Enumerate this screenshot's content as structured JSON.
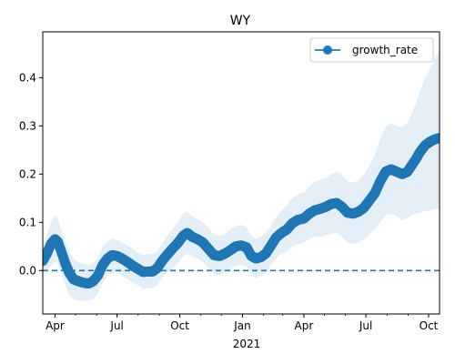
{
  "chart_data": {
    "type": "line",
    "title": "WY",
    "xlabel": "",
    "ylabel": "",
    "x_range": [
      "2020-03-14",
      "2021-10-17"
    ],
    "ylim": [
      -0.09,
      0.495
    ],
    "y_ticks": [
      0.0,
      0.1,
      0.2,
      0.3,
      0.4
    ],
    "y_tick_labels": [
      "0.0",
      "0.1",
      "0.2",
      "0.3",
      "0.4"
    ],
    "x_ticks": [
      {
        "date": "2020-04-01",
        "label": "Apr"
      },
      {
        "date": "2020-07-01",
        "label": "Jul"
      },
      {
        "date": "2020-10-01",
        "label": "Oct"
      },
      {
        "date": "2021-01-01",
        "label": "Jan"
      },
      {
        "date": "2021-04-01",
        "label": "Apr"
      },
      {
        "date": "2021-07-01",
        "label": "Jul"
      },
      {
        "date": "2021-10-01",
        "label": "Oct"
      }
    ],
    "x_year_label": "2021",
    "reference_line": {
      "y": 0.0,
      "style": "dashed"
    },
    "legend": {
      "entries": [
        "growth_rate"
      ],
      "position": "top-right"
    },
    "grid": false,
    "colors": {
      "line": "#1f77b4",
      "band": "#dbe8f4"
    },
    "series": [
      {
        "name": "growth_rate",
        "points": [
          [
            "2020-03-14",
            0.02,
            -0.005,
            0.045
          ],
          [
            "2020-03-20",
            0.035,
            0.0,
            0.075
          ],
          [
            "2020-03-26",
            0.055,
            0.01,
            0.1
          ],
          [
            "2020-04-01",
            0.065,
            0.02,
            0.115
          ],
          [
            "2020-04-05",
            0.06,
            0.015,
            0.108
          ],
          [
            "2020-04-10",
            0.04,
            -0.005,
            0.085
          ],
          [
            "2020-04-16",
            0.015,
            -0.03,
            0.06
          ],
          [
            "2020-04-22",
            -0.005,
            -0.05,
            0.04
          ],
          [
            "2020-04-28",
            -0.018,
            -0.06,
            0.025
          ],
          [
            "2020-05-05",
            -0.022,
            -0.062,
            0.018
          ],
          [
            "2020-05-12",
            -0.025,
            -0.063,
            0.015
          ],
          [
            "2020-05-20",
            -0.027,
            -0.062,
            0.012
          ],
          [
            "2020-05-27",
            -0.022,
            -0.06,
            0.016
          ],
          [
            "2020-06-03",
            -0.01,
            -0.048,
            0.028
          ],
          [
            "2020-06-10",
            0.012,
            -0.025,
            0.05
          ],
          [
            "2020-06-17",
            0.025,
            -0.01,
            0.06
          ],
          [
            "2020-06-24",
            0.032,
            -0.005,
            0.066
          ],
          [
            "2020-07-01",
            0.03,
            -0.004,
            0.064
          ],
          [
            "2020-07-08",
            0.025,
            -0.01,
            0.058
          ],
          [
            "2020-07-16",
            0.018,
            -0.018,
            0.052
          ],
          [
            "2020-07-24",
            0.01,
            -0.025,
            0.045
          ],
          [
            "2020-08-01",
            0.003,
            -0.03,
            0.036
          ],
          [
            "2020-08-08",
            -0.003,
            -0.038,
            0.032
          ],
          [
            "2020-08-15",
            -0.002,
            -0.037,
            0.034
          ],
          [
            "2020-08-22",
            -0.002,
            -0.037,
            0.034
          ],
          [
            "2020-08-29",
            0.005,
            -0.03,
            0.04
          ],
          [
            "2020-09-05",
            0.02,
            -0.015,
            0.057
          ],
          [
            "2020-09-12",
            0.032,
            -0.005,
            0.07
          ],
          [
            "2020-09-20",
            0.045,
            0.005,
            0.085
          ],
          [
            "2020-09-28",
            0.057,
            0.015,
            0.1
          ],
          [
            "2020-10-06",
            0.072,
            0.03,
            0.118
          ],
          [
            "2020-10-12",
            0.078,
            0.035,
            0.122
          ],
          [
            "2020-10-19",
            0.07,
            0.03,
            0.112
          ],
          [
            "2020-10-27",
            0.065,
            0.025,
            0.107
          ],
          [
            "2020-11-04",
            0.058,
            0.018,
            0.1
          ],
          [
            "2020-11-12",
            0.045,
            0.005,
            0.088
          ],
          [
            "2020-11-20",
            0.032,
            -0.008,
            0.075
          ],
          [
            "2020-11-28",
            0.03,
            -0.01,
            0.072
          ],
          [
            "2020-12-06",
            0.035,
            -0.005,
            0.076
          ],
          [
            "2020-12-14",
            0.042,
            0.002,
            0.085
          ],
          [
            "2020-12-22",
            0.05,
            0.01,
            0.092
          ],
          [
            "2020-12-30",
            0.052,
            0.012,
            0.095
          ],
          [
            "2021-01-07",
            0.048,
            0.008,
            0.09
          ],
          [
            "2021-01-14",
            0.03,
            -0.01,
            0.072
          ],
          [
            "2021-01-21",
            0.025,
            -0.015,
            0.066
          ],
          [
            "2021-01-28",
            0.028,
            -0.012,
            0.07
          ],
          [
            "2021-02-04",
            0.035,
            -0.005,
            0.078
          ],
          [
            "2021-02-11",
            0.05,
            0.01,
            0.092
          ],
          [
            "2021-02-19",
            0.068,
            0.025,
            0.11
          ],
          [
            "2021-02-27",
            0.078,
            0.035,
            0.125
          ],
          [
            "2021-03-07",
            0.085,
            0.04,
            0.135
          ],
          [
            "2021-03-15",
            0.098,
            0.05,
            0.15
          ],
          [
            "2021-03-23",
            0.105,
            0.055,
            0.158
          ],
          [
            "2021-04-01",
            0.108,
            0.058,
            0.162
          ],
          [
            "2021-04-09",
            0.118,
            0.065,
            0.175
          ],
          [
            "2021-04-17",
            0.125,
            0.07,
            0.185
          ],
          [
            "2021-04-25",
            0.128,
            0.07,
            0.188
          ],
          [
            "2021-05-03",
            0.132,
            0.073,
            0.192
          ],
          [
            "2021-05-11",
            0.138,
            0.076,
            0.2
          ],
          [
            "2021-05-19",
            0.14,
            0.078,
            0.205
          ],
          [
            "2021-05-27",
            0.132,
            0.07,
            0.198
          ],
          [
            "2021-06-04",
            0.12,
            0.058,
            0.185
          ],
          [
            "2021-06-12",
            0.118,
            0.055,
            0.182
          ],
          [
            "2021-06-20",
            0.122,
            0.058,
            0.188
          ],
          [
            "2021-06-28",
            0.13,
            0.064,
            0.198
          ],
          [
            "2021-07-06",
            0.145,
            0.075,
            0.218
          ],
          [
            "2021-07-14",
            0.16,
            0.085,
            0.24
          ],
          [
            "2021-07-22",
            0.185,
            0.1,
            0.272
          ],
          [
            "2021-07-30",
            0.205,
            0.115,
            0.298
          ],
          [
            "2021-08-07",
            0.21,
            0.118,
            0.305
          ],
          [
            "2021-08-15",
            0.205,
            0.113,
            0.3
          ],
          [
            "2021-08-23",
            0.2,
            0.105,
            0.298
          ],
          [
            "2021-08-31",
            0.205,
            0.108,
            0.305
          ],
          [
            "2021-09-06",
            0.218,
            0.115,
            0.325
          ],
          [
            "2021-09-12",
            0.23,
            0.118,
            0.345
          ],
          [
            "2021-09-18",
            0.245,
            0.12,
            0.37
          ],
          [
            "2021-09-26",
            0.26,
            0.123,
            0.4
          ],
          [
            "2021-10-04",
            0.268,
            0.125,
            0.42
          ],
          [
            "2021-10-10",
            0.272,
            0.127,
            0.44
          ],
          [
            "2021-10-17",
            0.275,
            0.128,
            0.455
          ]
        ]
      }
    ]
  }
}
